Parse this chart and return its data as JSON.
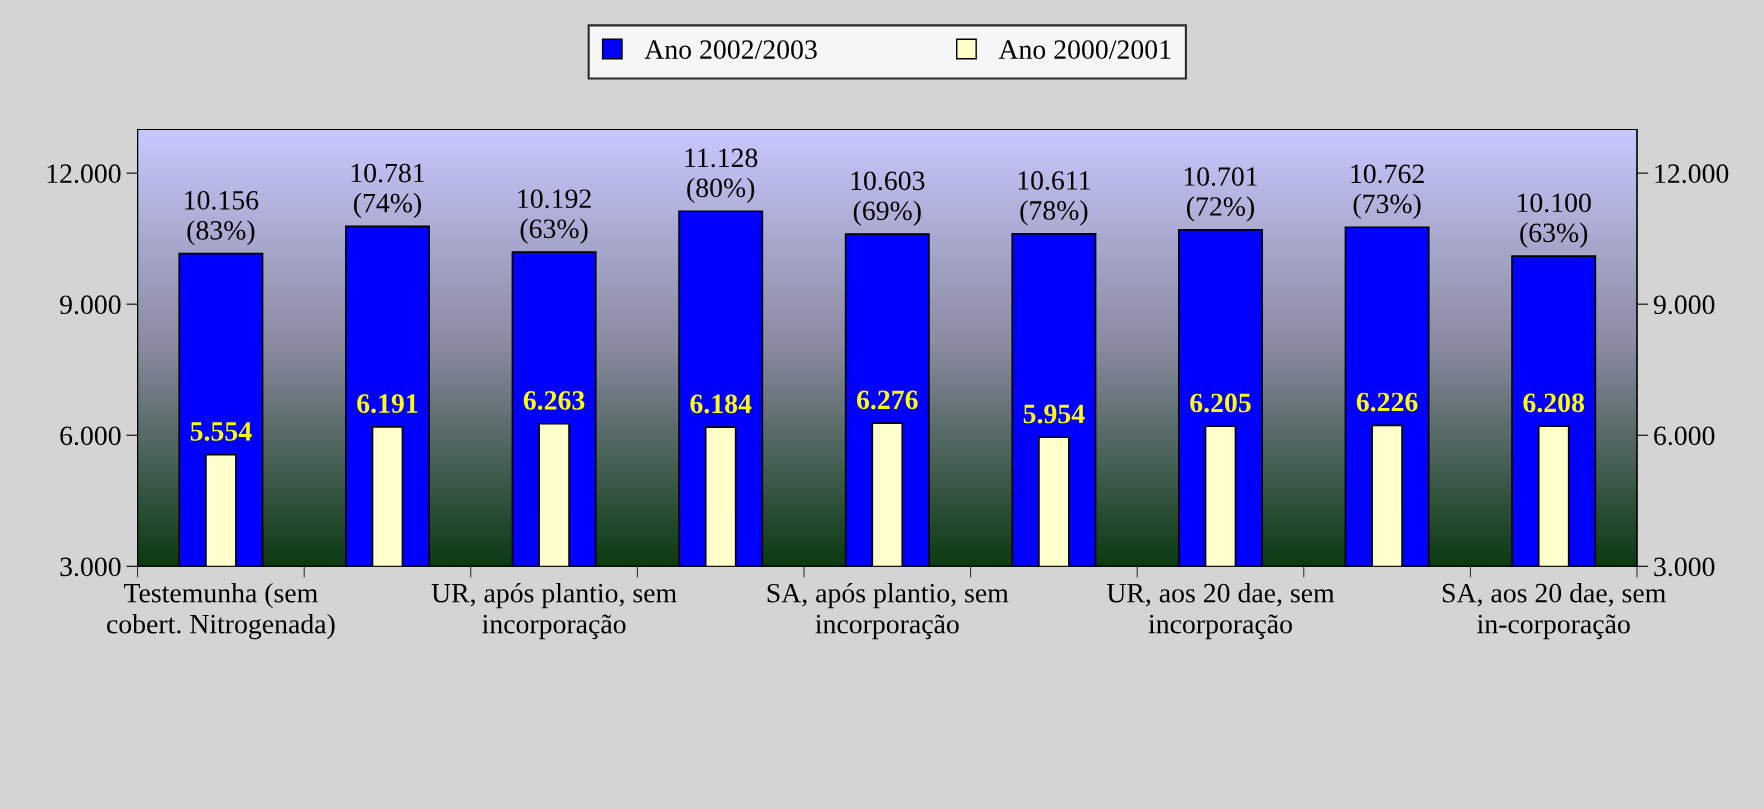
{
  "chart_data": {
    "type": "bar",
    "categories": [
      "Testemunha (sem cobert. Nitrogenada)",
      null,
      "UR, após plantio, sem incorporação",
      null,
      "SA, após plantio, sem incorporação",
      null,
      "UR, aos 20 dae, sem incorporação",
      null,
      "SA, aos 20 dae, sem in-corporação"
    ],
    "series": [
      {
        "name": "Ano 2002/2003",
        "color": "#0000ff",
        "values": [
          10156,
          10781,
          10192,
          11128,
          10603,
          10611,
          10701,
          10762,
          10100
        ],
        "value_labels": [
          "10.156\n(83%)",
          "10.781\n(74%)",
          "10.192\n(63%)",
          "11.128\n(80%)",
          "10.603\n(69%)",
          "10.611\n(78%)",
          "10.701\n(72%)",
          "10.762\n(73%)",
          "10.100\n(63%)"
        ]
      },
      {
        "name": "Ano 2000/2001",
        "color": "#ffffcc",
        "values": [
          5554,
          6191,
          6263,
          6184,
          6276,
          5954,
          6205,
          6226,
          6208
        ],
        "value_labels": [
          "5.554",
          "6.191",
          "6.263",
          "6.184",
          "6.276",
          "5.954",
          "6.205",
          "6.226",
          "6.208"
        ]
      }
    ],
    "ylim": [
      3000,
      13000
    ],
    "yticks": [
      {
        "value": 3000,
        "label": "3.000"
      },
      {
        "value": 6000,
        "label": "6.000"
      },
      {
        "value": 9000,
        "label": "9.000"
      },
      {
        "value": 12000,
        "label": "12.000"
      }
    ],
    "y2lim": [
      3000,
      13000
    ],
    "y2ticks": [
      {
        "value": 3000,
        "label": "3.000"
      },
      {
        "value": 6000,
        "label": "6.000"
      },
      {
        "value": 9000,
        "label": "9.000"
      },
      {
        "value": 12000,
        "label": "12.000"
      }
    ],
    "legend": "top",
    "grid": false
  }
}
